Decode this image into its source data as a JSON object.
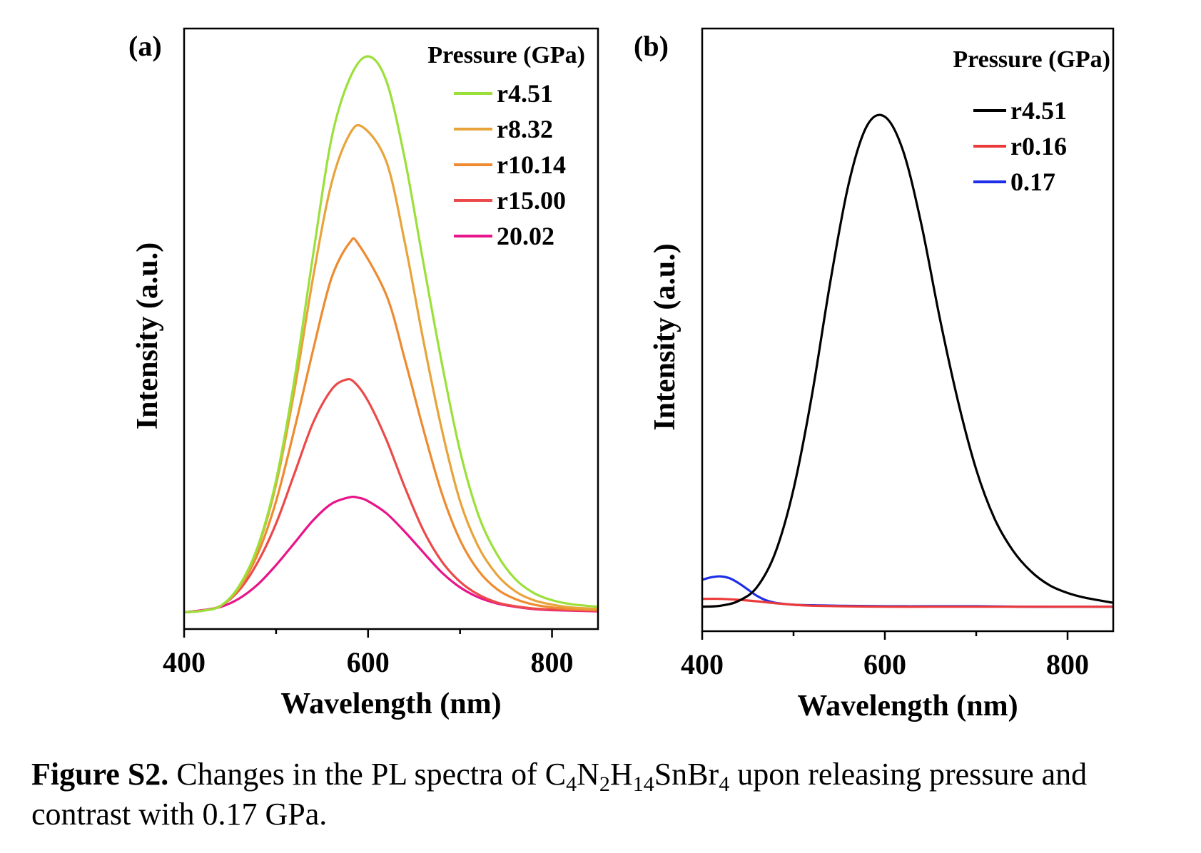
{
  "panels": [
    {
      "panel_label": "(a)",
      "legend_title": "Pressure (GPa)",
      "chart_data": {
        "type": "line",
        "xlabel": "Wavelength (nm)",
        "ylabel": "Intensity (a.u.)",
        "xlim": [
          400,
          850
        ],
        "ylim": [
          -0.03,
          1.05
        ],
        "x_ticks": [
          400,
          600,
          800
        ],
        "x_minor_ticks": [
          500,
          700
        ],
        "y_ticks_shown": false,
        "grid": false,
        "legend_position": "top-right",
        "series": [
          {
            "name": "r4.51",
            "color": "#9BE03A",
            "x": [
              400,
              420,
              440,
              460,
              480,
              500,
              520,
              540,
              560,
              580,
              600,
              620,
              640,
              660,
              680,
              700,
              720,
              740,
              760,
              780,
              800,
              820,
              850
            ],
            "y": [
              0.0,
              0.003,
              0.012,
              0.048,
              0.118,
              0.238,
              0.42,
              0.64,
              0.85,
              0.96,
              1.0,
              0.955,
              0.815,
              0.63,
              0.45,
              0.29,
              0.175,
              0.105,
              0.06,
              0.035,
              0.022,
              0.015,
              0.01
            ]
          },
          {
            "name": "r8.32",
            "color": "#E8A33A",
            "x": [
              400,
              420,
              440,
              460,
              480,
              500,
              520,
              540,
              560,
              580,
              595,
              620,
              640,
              660,
              680,
              700,
              720,
              740,
              760,
              780,
              800,
              820,
              850
            ],
            "y": [
              0.0,
              0.003,
              0.012,
              0.046,
              0.115,
              0.23,
              0.4,
              0.6,
              0.77,
              0.86,
              0.872,
              0.81,
              0.665,
              0.49,
              0.33,
              0.2,
              0.118,
              0.068,
              0.038,
              0.022,
              0.014,
              0.009,
              0.006
            ]
          },
          {
            "name": "r10.14",
            "color": "#EE8B30",
            "x": [
              400,
              420,
              440,
              460,
              480,
              500,
              520,
              540,
              560,
              580,
              590,
              620,
              640,
              660,
              680,
              700,
              720,
              740,
              760,
              780,
              800,
              820,
              850
            ],
            "y": [
              0.0,
              0.003,
              0.012,
              0.044,
              0.105,
              0.2,
              0.33,
              0.47,
              0.6,
              0.665,
              0.661,
              0.57,
              0.455,
              0.33,
              0.215,
              0.13,
              0.075,
              0.042,
              0.024,
              0.014,
              0.009,
              0.006,
              0.004
            ]
          },
          {
            "name": "r15.00",
            "color": "#EC4A4A",
            "x": [
              400,
              420,
              440,
              460,
              480,
              500,
              520,
              540,
              560,
              575,
              585,
              600,
              620,
              640,
              660,
              680,
              700,
              720,
              740,
              760,
              780,
              800,
              850
            ],
            "y": [
              0.0,
              0.003,
              0.012,
              0.04,
              0.09,
              0.16,
              0.25,
              0.34,
              0.4,
              0.418,
              0.414,
              0.38,
              0.31,
              0.225,
              0.148,
              0.092,
              0.055,
              0.032,
              0.018,
              0.011,
              0.007,
              0.005,
              0.003
            ]
          },
          {
            "name": "20.02",
            "color": "#E8158A",
            "x": [
              400,
              420,
              440,
              460,
              480,
              500,
              520,
              540,
              560,
              580,
              590,
              600,
              620,
              640,
              660,
              680,
              700,
              720,
              740,
              760,
              780,
              800,
              850
            ],
            "y": [
              0.0,
              0.004,
              0.01,
              0.025,
              0.05,
              0.085,
              0.125,
              0.165,
              0.195,
              0.207,
              0.206,
              0.2,
              0.178,
              0.145,
              0.108,
              0.072,
              0.045,
              0.027,
              0.016,
              0.01,
              0.006,
              0.004,
              0.002
            ]
          }
        ]
      }
    },
    {
      "panel_label": "(b)",
      "legend_title": "Pressure (GPa)",
      "chart_data": {
        "type": "line",
        "xlabel": "Wavelength (nm)",
        "ylabel": "Intensity (a.u.)",
        "xlim": [
          400,
          850
        ],
        "ylim": [
          -0.05,
          1.18
        ],
        "x_ticks": [
          400,
          600,
          800
        ],
        "x_minor_ticks": [
          500,
          700
        ],
        "y_ticks_shown": false,
        "grid": false,
        "legend_position": "top-right",
        "series": [
          {
            "name": "r4.51",
            "color": "#000000",
            "x": [
              400,
              420,
              440,
              460,
              480,
              500,
              520,
              540,
              560,
              580,
              600,
              620,
              640,
              660,
              680,
              700,
              720,
              740,
              760,
              780,
              800,
              820,
              850
            ],
            "y": [
              0.0,
              0.002,
              0.012,
              0.04,
              0.11,
              0.24,
              0.43,
              0.66,
              0.86,
              0.98,
              1.0,
              0.93,
              0.78,
              0.59,
              0.42,
              0.28,
              0.18,
              0.115,
              0.072,
              0.044,
              0.028,
              0.018,
              0.008
            ]
          },
          {
            "name": "r0.16",
            "color": "#EC3A3A",
            "x": [
              400,
              420,
              440,
              460,
              480,
              500,
              520,
              550,
              600,
              650,
              700,
              750,
              800,
              850
            ],
            "y": [
              0.016,
              0.016,
              0.014,
              0.011,
              0.007,
              0.004,
              0.002,
              0.001,
              0.0,
              0.0,
              0.0,
              0.0,
              0.0,
              0.0
            ]
          },
          {
            "name": "0.17",
            "color": "#1E2EE8",
            "x": [
              400,
              410,
              420,
              430,
              440,
              450,
              460,
              470,
              480,
              500,
              520,
              550,
              600,
              650,
              700,
              750,
              800,
              850
            ],
            "y": [
              0.055,
              0.06,
              0.062,
              0.058,
              0.048,
              0.035,
              0.022,
              0.013,
              0.008,
              0.004,
              0.003,
              0.002,
              0.001,
              0.001,
              0.001,
              0.0,
              0.0,
              0.0
            ]
          }
        ]
      }
    }
  ],
  "caption": {
    "label": "Figure S2.",
    "text_before_formula": " Changes in the PL spectra of ",
    "formula": [
      {
        "t": "C",
        "sub": "4"
      },
      {
        "t": "N",
        "sub": "2"
      },
      {
        "t": "H",
        "sub": "14"
      },
      {
        "t": "SnBr",
        "sub": "4"
      }
    ],
    "text_after_formula": " upon releasing pressure and contrast with 0.17 GPa."
  }
}
